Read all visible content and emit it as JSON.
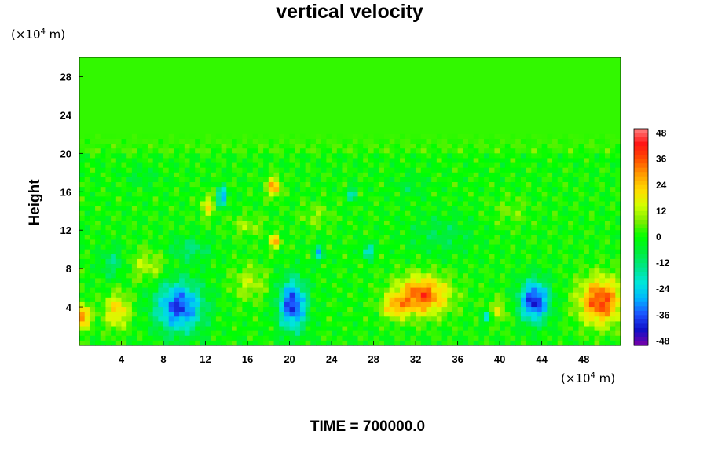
{
  "chart_data": {
    "type": "heatmap",
    "title": "vertical velocity",
    "ylabel": "Height",
    "xlabel": "",
    "x_units": "(×10",
    "x_units_exp": "4",
    "x_units_tail": " m)",
    "y_units": "(×10",
    "y_units_exp": "4",
    "y_units_tail": " m)",
    "footer": "TIME = 700000.0",
    "xlim": [
      0,
      51.5
    ],
    "ylim": [
      0,
      30
    ],
    "x_ticks": [
      4,
      8,
      12,
      16,
      20,
      24,
      28,
      32,
      36,
      40,
      44,
      48
    ],
    "y_ticks": [
      4,
      8,
      12,
      16,
      20,
      24,
      28
    ],
    "colorbar": {
      "range": [
        -50,
        50
      ],
      "ticks": [
        48,
        36,
        24,
        12,
        0,
        -12,
        -24,
        -36,
        -48
      ],
      "colors": [
        "#7a00a8",
        "#1010c8",
        "#1e50ff",
        "#00b4ff",
        "#00e6dc",
        "#00e68c",
        "#00ee3c",
        "#00ff00",
        "#78ee00",
        "#d2ff00",
        "#ffdc00",
        "#ffa000",
        "#ff5000",
        "#ff1414",
        "#ff8080"
      ]
    },
    "features": [
      {
        "x": 9.5,
        "y": 4.0,
        "sx": 2.2,
        "sy": 2.6,
        "w": -38
      },
      {
        "x": 20.3,
        "y": 4.2,
        "sx": 1.3,
        "sy": 2.6,
        "w": -40
      },
      {
        "x": 43.3,
        "y": 4.6,
        "sx": 1.4,
        "sy": 2.1,
        "w": -42
      },
      {
        "x": 13.6,
        "y": 15.5,
        "sx": 0.45,
        "sy": 1.0,
        "w": -32
      },
      {
        "x": 3.2,
        "y": 8.6,
        "sx": 1.2,
        "sy": 1.6,
        "w": -12
      },
      {
        "x": 10.5,
        "y": 10.0,
        "sx": 2.0,
        "sy": 1.2,
        "w": -12
      },
      {
        "x": 22.8,
        "y": 9.6,
        "sx": 0.45,
        "sy": 0.8,
        "w": -24
      },
      {
        "x": 27.5,
        "y": 9.8,
        "sx": 0.5,
        "sy": 0.7,
        "w": -26
      },
      {
        "x": 26.0,
        "y": 15.8,
        "sx": 0.4,
        "sy": 0.7,
        "w": -22
      },
      {
        "x": 38.8,
        "y": 3.0,
        "sx": 0.5,
        "sy": 0.7,
        "w": -22
      },
      {
        "x": 34.5,
        "y": 11.5,
        "sx": 3.0,
        "sy": 2.0,
        "w": -8
      },
      {
        "x": 32.6,
        "y": 5.2,
        "sx": 2.5,
        "sy": 2.0,
        "w": 36
      },
      {
        "x": 30.0,
        "y": 4.0,
        "sx": 1.2,
        "sy": 1.2,
        "w": 20
      },
      {
        "x": 49.6,
        "y": 4.6,
        "sx": 2.0,
        "sy": 2.4,
        "w": 38
      },
      {
        "x": 0.2,
        "y": 3.0,
        "sx": 0.8,
        "sy": 1.2,
        "w": 34
      },
      {
        "x": 3.6,
        "y": 3.6,
        "sx": 1.2,
        "sy": 1.8,
        "w": 22
      },
      {
        "x": 6.5,
        "y": 8.3,
        "sx": 1.8,
        "sy": 1.6,
        "w": 12
      },
      {
        "x": 16.2,
        "y": 6.5,
        "sx": 1.6,
        "sy": 1.8,
        "w": 12
      },
      {
        "x": 18.5,
        "y": 16.5,
        "sx": 0.6,
        "sy": 1.0,
        "w": 30
      },
      {
        "x": 18.6,
        "y": 10.8,
        "sx": 0.5,
        "sy": 0.7,
        "w": 28
      },
      {
        "x": 12.2,
        "y": 14.5,
        "sx": 0.6,
        "sy": 1.2,
        "w": 18
      },
      {
        "x": 39.8,
        "y": 3.6,
        "sx": 1.0,
        "sy": 1.2,
        "w": 14
      },
      {
        "x": 22.5,
        "y": 13.5,
        "sx": 1.4,
        "sy": 1.3,
        "w": 8
      },
      {
        "x": 41.0,
        "y": 14.0,
        "sx": 1.8,
        "sy": 1.5,
        "w": 6
      },
      {
        "x": 16.0,
        "y": 12.5,
        "sx": 1.5,
        "sy": 1.0,
        "w": 10
      },
      {
        "x": 6.0,
        "y": 17.5,
        "sx": 1.5,
        "sy": 1.0,
        "w": -6
      },
      {
        "x": 31.5,
        "y": 16.5,
        "sx": 1.5,
        "sy": 1.2,
        "w": -6
      }
    ]
  }
}
